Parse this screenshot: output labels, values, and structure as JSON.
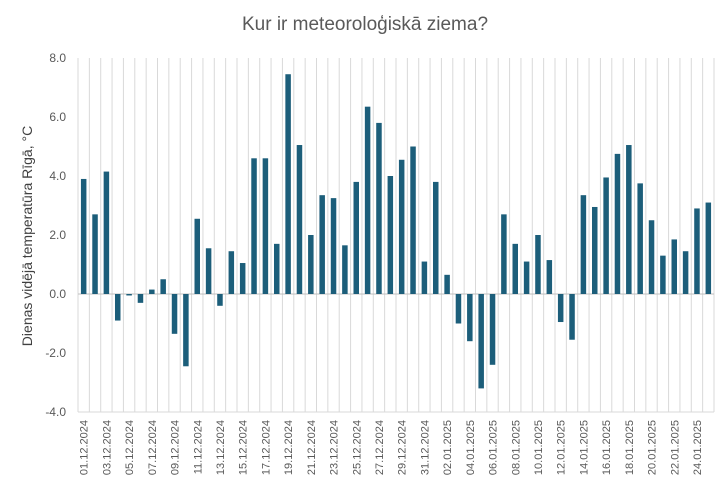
{
  "chart_data": {
    "type": "bar",
    "title": "Kur ir meteoroloģiskā ziema?",
    "xlabel": "",
    "ylabel": "Dienas vidējā temperatūra Rīgā, °C",
    "ylim": [
      -4,
      8
    ],
    "yticks": [
      "-4.0",
      "-2.0",
      "0.0",
      "2.0",
      "4.0",
      "6.0",
      "8.0"
    ],
    "grid": "vertical",
    "legend": "none",
    "bar_color": "#1c5e7a",
    "categories": [
      "01.12.2024",
      "02.12.2024",
      "03.12.2024",
      "04.12.2024",
      "05.12.2024",
      "06.12.2024",
      "07.12.2024",
      "08.12.2024",
      "09.12.2024",
      "10.12.2024",
      "11.12.2024",
      "12.12.2024",
      "13.12.2024",
      "14.12.2024",
      "15.12.2024",
      "16.12.2024",
      "17.12.2024",
      "18.12.2024",
      "19.12.2024",
      "20.12.2024",
      "21.12.2024",
      "22.12.2024",
      "23.12.2024",
      "24.12.2024",
      "25.12.2024",
      "26.12.2024",
      "27.12.2024",
      "28.12.2024",
      "29.12.2024",
      "30.12.2024",
      "31.12.2024",
      "01.01.2025",
      "02.01.2025",
      "03.01.2025",
      "04.01.2025",
      "05.01.2025",
      "06.01.2025",
      "07.01.2025",
      "08.01.2025",
      "09.01.2025",
      "10.01.2025",
      "11.01.2025",
      "12.01.2025",
      "13.01.2025",
      "14.01.2025",
      "15.01.2025",
      "16.01.2025",
      "17.01.2025",
      "18.01.2025",
      "19.01.2025",
      "20.01.2025",
      "21.01.2025",
      "22.01.2025",
      "23.01.2025",
      "24.01.2025",
      "25.01.2025"
    ],
    "tick_labels": [
      "01.12.2024",
      "03.12.2024",
      "05.12.2024",
      "07.12.2024",
      "09.12.2024",
      "11.12.2024",
      "13.12.2024",
      "15.12.2024",
      "17.12.2024",
      "19.12.2024",
      "21.12.2024",
      "23.12.2024",
      "25.12.2024",
      "27.12.2024",
      "29.12.2024",
      "31.12.2024",
      "02.01.2025",
      "04.01.2025",
      "06.01.2025",
      "08.01.2025",
      "10.01.2025",
      "12.01.2025",
      "14.01.2025",
      "16.01.2025",
      "18.01.2025",
      "20.01.2025",
      "22.01.2025",
      "24.01.2025"
    ],
    "values": [
      3.9,
      2.7,
      4.15,
      -0.9,
      -0.05,
      -0.3,
      0.15,
      0.5,
      -1.35,
      -2.45,
      2.55,
      1.55,
      -0.4,
      1.45,
      1.05,
      4.6,
      4.6,
      1.7,
      7.45,
      5.05,
      2.0,
      3.35,
      3.25,
      1.65,
      3.8,
      6.35,
      5.8,
      4.0,
      4.55,
      5.0,
      1.1,
      3.8,
      0.65,
      -1.0,
      -1.6,
      -3.2,
      -2.4,
      2.7,
      1.7,
      1.1,
      2.0,
      1.15,
      -0.95,
      -1.55,
      3.35,
      2.95,
      3.95,
      4.75,
      5.05,
      3.75,
      2.5,
      1.3,
      1.85,
      1.45,
      2.9,
      3.1
    ]
  }
}
